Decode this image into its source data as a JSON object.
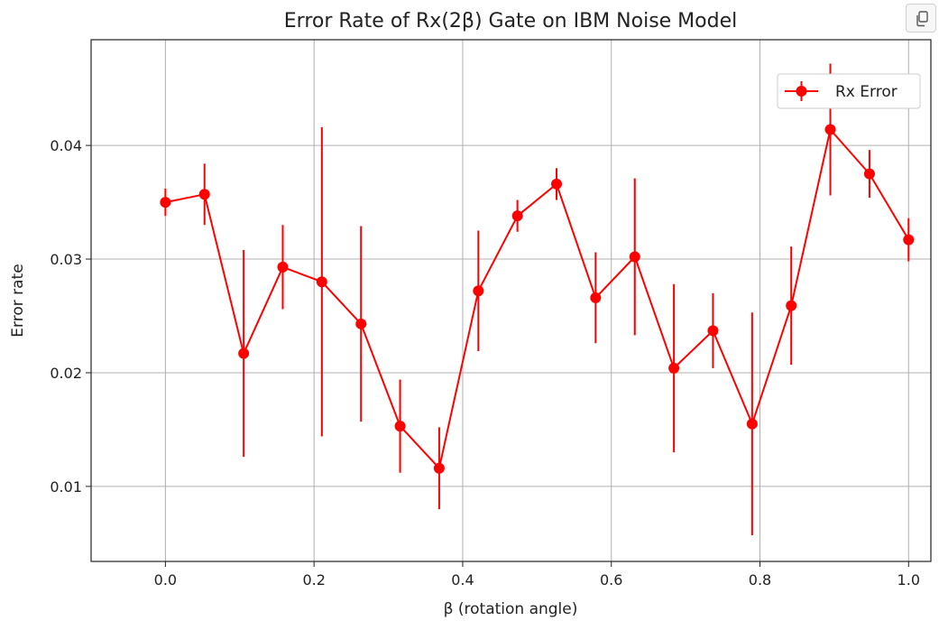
{
  "toolbar": {
    "copy_icon": "copy-icon"
  },
  "chart_data": {
    "type": "line",
    "title": "Error Rate of Rx(2β) Gate on IBM Noise Model",
    "xlabel": "β (rotation angle)",
    "ylabel": "Error rate",
    "xlim": [
      -0.1,
      1.03
    ],
    "ylim": [
      0.0034,
      0.0493
    ],
    "xticks": [
      0.0,
      0.2,
      0.4,
      0.6,
      0.8,
      1.0
    ],
    "xtick_labels": [
      "0.0",
      "0.2",
      "0.4",
      "0.6",
      "0.8",
      "1.0"
    ],
    "yticks": [
      0.01,
      0.02,
      0.03,
      0.04
    ],
    "ytick_labels": [
      "0.01",
      "0.02",
      "0.03",
      "0.04"
    ],
    "grid": true,
    "legend": "top-right",
    "color": "#ff0000",
    "series": [
      {
        "name": "Rx Error",
        "x": [
          0.0,
          0.0526,
          0.1053,
          0.1579,
          0.2105,
          0.2632,
          0.3158,
          0.3684,
          0.4211,
          0.4737,
          0.5263,
          0.5789,
          0.6316,
          0.6842,
          0.7368,
          0.7895,
          0.8421,
          0.8947,
          0.9474,
          1.0
        ],
        "y": [
          0.035,
          0.0357,
          0.0217,
          0.0293,
          0.028,
          0.0243,
          0.0153,
          0.0116,
          0.0272,
          0.0338,
          0.0366,
          0.0266,
          0.0302,
          0.0204,
          0.0237,
          0.0155,
          0.0259,
          0.0414,
          0.0375,
          0.0317
        ],
        "yerr": [
          0.0012,
          0.0027,
          0.0091,
          0.0037,
          0.0136,
          0.0086,
          0.0041,
          0.0036,
          0.0053,
          0.0014,
          0.0014,
          0.004,
          0.0069,
          0.0074,
          0.0033,
          0.0098,
          0.0052,
          0.0058,
          0.0021,
          0.0019
        ]
      }
    ]
  }
}
